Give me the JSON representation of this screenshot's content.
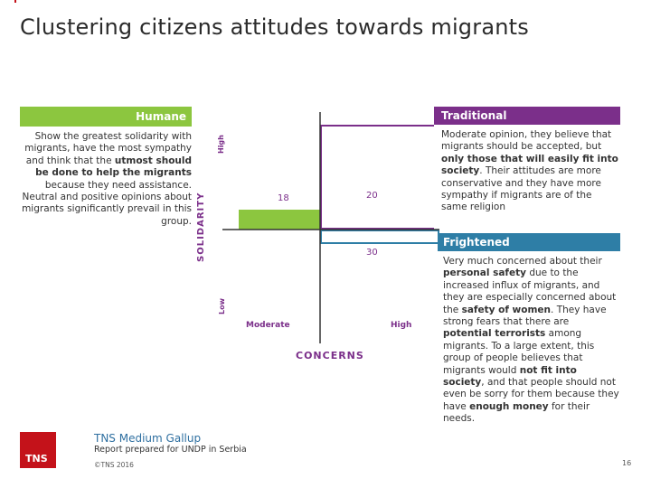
{
  "title": "Clustering citizens attitudes towards migrants",
  "segments": {
    "humane": {
      "label": "Humane",
      "description_parts": [
        "Show the greatest solidarity with migrants, have the most sympathy and think that the ",
        "utmost should be done to help the migrants",
        " because they need assistance. Neutral and positive opinions about migrants significantly prevail in this group."
      ]
    },
    "traditional": {
      "label": "Traditional",
      "description_parts": [
        "Moderate opinion, they believe that migrants should be accepted, but ",
        "only those that will easily fit into society",
        ". Their attitudes are more conservative and they have more sympathy if migrants are of the same religion"
      ]
    },
    "frightened": {
      "label": "Frightened",
      "description_parts": [
        "Very much concerned about their ",
        "personal safety",
        " due to the increased influx of migrants, and they are especially concerned about the ",
        "safety of women",
        ". They have strong fears that there are ",
        "potential terrorists",
        " among migrants. To a large extent, this group of people believes that migrants would ",
        "not fit into society",
        ", and that people should not even be sorry for them because they have ",
        "enough money",
        " for their needs."
      ]
    }
  },
  "chart": {
    "y_axis_label": "SOLIDARITY",
    "y_high": "High",
    "y_low": "Low",
    "x_axis_label": "CONCERNS",
    "x_moderate": "Moderate",
    "x_high": "High",
    "values": {
      "humane": "18",
      "traditional": "20",
      "frightened": "30"
    }
  },
  "footer": {
    "brand": "TNS Medium Gallup",
    "report": "Report prepared for UNDP in Serbia",
    "copyright": "©TNS 2016",
    "page": "16",
    "logo_text": "TNS"
  },
  "colors": {
    "humane": "#8cc63f",
    "traditional": "#7b2f8a",
    "frightened": "#2e7ea6",
    "logo": "#c4121a"
  }
}
